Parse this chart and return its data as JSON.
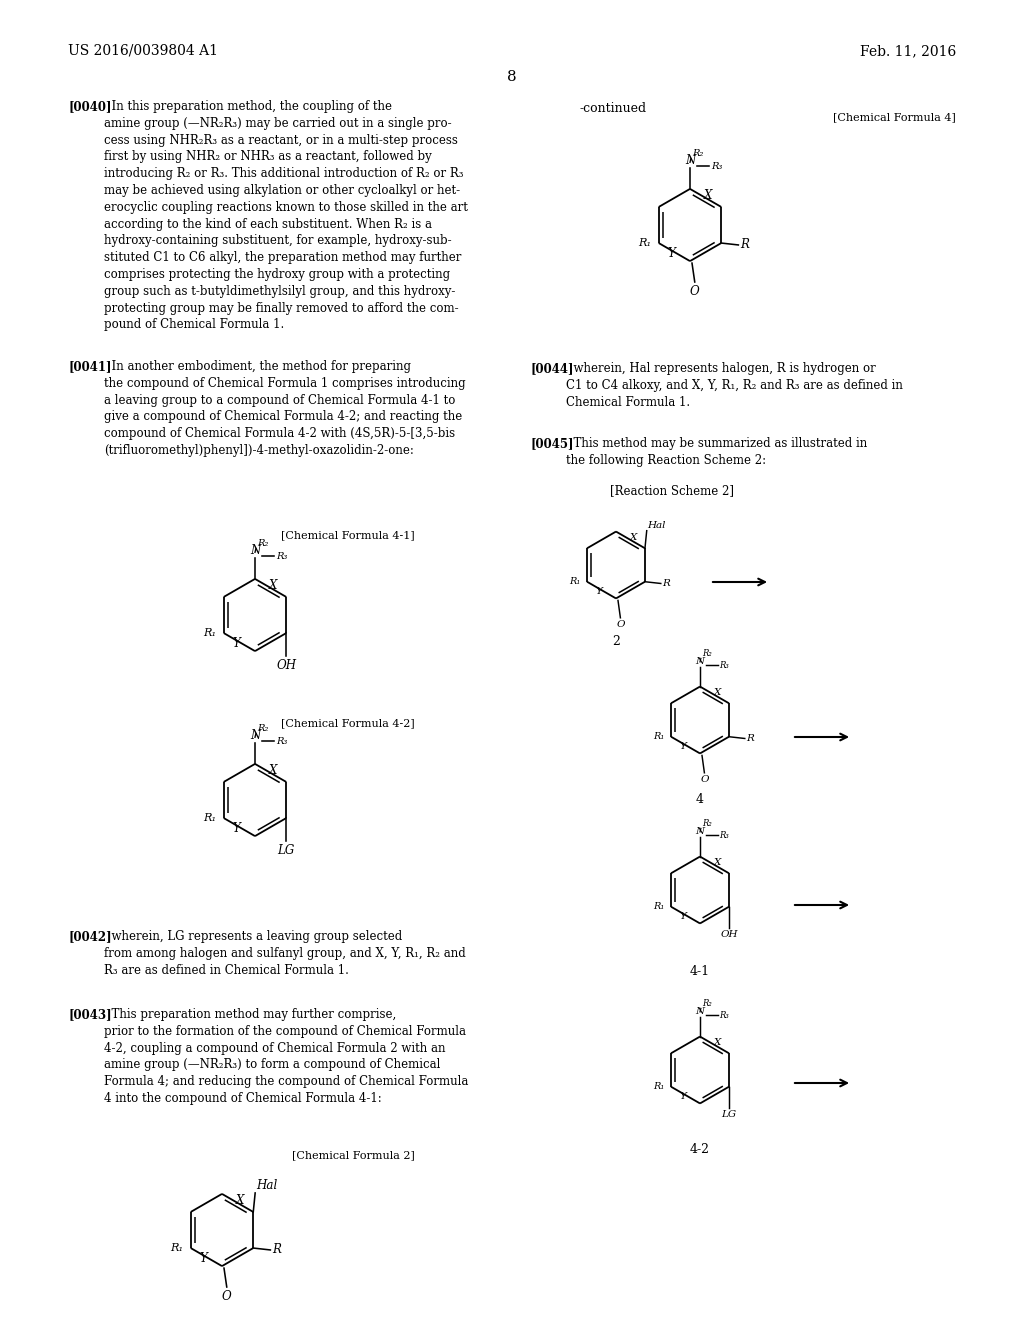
{
  "bg": "#ffffff",
  "fg": "#000000",
  "header_left": "US 2016/0039804 A1",
  "header_right": "Feb. 11, 2016",
  "page_num": "8",
  "para0040_tag": "[0040]",
  "para0040_body": "  In this preparation method, the coupling of the\namine group (—NR₂R₃) may be carried out in a single pro-\ncess using NHR₂R₃ as a reactant, or in a multi-step process\nfirst by using NHR₂ or NHR₃ as a reactant, followed by\nintroducing R₂ or R₃. This additional introduction of R₂ or R₃\nmay be achieved using alkylation or other cycloalkyl or het-\nerocyclic coupling reactions known to those skilled in the art\naccording to the kind of each substituent. When R₂ is a\nhydroxy-containing substituent, for example, hydroxy-sub-\nstituted C1 to C6 alkyl, the preparation method may further\ncomprises protecting the hydroxy group with a protecting\ngroup such as t-butyldimethylsilyl group, and this hydroxy-\nprotecting group may be finally removed to afford the com-\npound of Chemical Formula 1.",
  "para0041_tag": "[0041]",
  "para0041_body": "  In another embodiment, the method for preparing\nthe compound of Chemical Formula 1 comprises introducing\na leaving group to a compound of Chemical Formula 4-1 to\ngive a compound of Chemical Formula 4-2; and reacting the\ncompound of Chemical Formula 4-2 with (4S,5R)-5-[3,5-bis\n(trifluoromethyl)phenyl])-4-methyl-oxazolidin-2-one:",
  "para0042_tag": "[0042]",
  "para0042_body": "  wherein, LG represents a leaving group selected\nfrom among halogen and sulfanyl group, and X, Y, R₁, R₂ and\nR₃ are as defined in Chemical Formula 1.",
  "para0043_tag": "[0043]",
  "para0043_body": "  This preparation method may further comprise,\nprior to the formation of the compound of Chemical Formula\n4-2, coupling a compound of Chemical Formula 2 with an\namine group (—NR₂R₃) to form a compound of Chemical\nFormula 4; and reducing the compound of Chemical Formula\n4 into the compound of Chemical Formula 4-1:",
  "para0044_tag": "[0044]",
  "para0044_body": "  wherein, Hal represents halogen, R is hydrogen or\nC1 to C4 alkoxy, and X, Y, R₁, R₂ and R₃ are as defined in\nChemical Formula 1.",
  "para0045_tag": "[0045]",
  "para0045_body": "  This method may be summarized as illustrated in\nthe following Reaction Scheme 2:",
  "continued_label": "-continued",
  "chem_formula4_label": "[Chemical Formula 4]",
  "chem_formula41_label": "[Chemical Formula 4-1]",
  "chem_formula42_label": "[Chemical Formula 4-2]",
  "chem_formula2_label": "[Chemical Formula 2]",
  "reaction_scheme2_label": "[Reaction Scheme 2]"
}
